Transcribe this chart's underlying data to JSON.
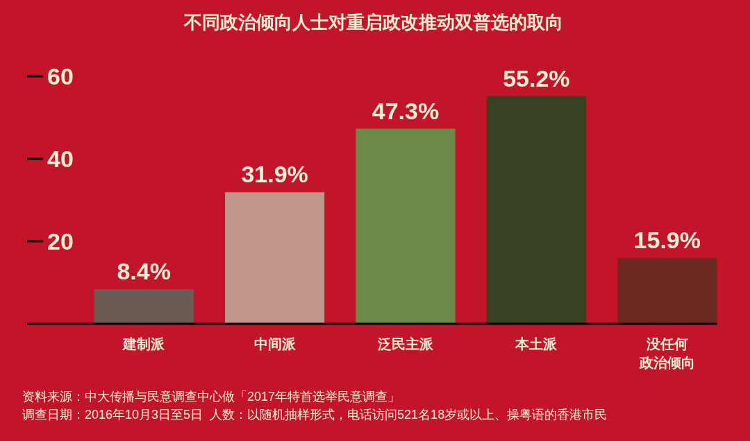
{
  "chart_data": {
    "type": "bar",
    "title": "不同政治倾向人士对重启政改推动双普选的取向",
    "categories": [
      "建制派",
      "中间派",
      "泛民主派",
      "本土派",
      "没任何政治倾向"
    ],
    "values": [
      8.4,
      31.9,
      47.3,
      55.2,
      15.9
    ],
    "colors": [
      "#6c5a55",
      "#c0958a",
      "#6b8a47",
      "#374222",
      "#6b2a22"
    ],
    "value_labels": [
      "8.4%",
      "31.9%",
      "47.3%",
      "55.2%",
      "15.9%"
    ],
    "ylim": [
      0,
      60
    ],
    "yticks": [
      20,
      40,
      60
    ],
    "annotations": [
      "资料来源：中大传播与民意调查中心做「2017年特首选举民意调查」",
      "调查日期：2016年10月3日至5日  人数：以随机抽样形式，电话访问521名18岁或以上、操粤语的香港市民"
    ]
  }
}
